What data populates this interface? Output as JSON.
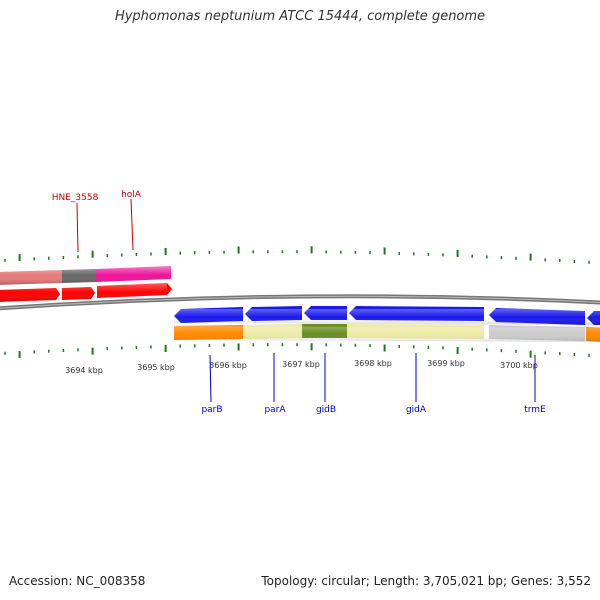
{
  "title": "Hyphomonas neptunium ATCC 15444, complete genome",
  "footer": {
    "accession": "Accession: NC_008358",
    "summary": "Topology: circular; Length: 3,705,021 bp; Genes: 3,552"
  },
  "colors": {
    "backbone": "#777777",
    "tick": "#1a7a1a",
    "top_label": "#cc0000",
    "bottom_label": "#0000cc",
    "gene_red": "#ff0000",
    "gene_pink": "#ee1199",
    "gene_salmon": "#e87878",
    "gene_gray": "#666666",
    "gene_blue": "#1a1aee",
    "gene_orange": "#ff8800",
    "gene_yellow": "#eeeaa8",
    "gene_olive": "#6b8e23",
    "gene_silver": "#cccccc"
  },
  "kbp_labels": [
    "3694 kbp",
    "3695 kbp",
    "3696 kbp",
    "3697 kbp",
    "3698 kbp",
    "3699 kbp",
    "3700 kbp"
  ],
  "top_genes": [
    "HNE_3558",
    "holA"
  ],
  "bottom_genes": [
    "parB",
    "parA",
    "gidB",
    "gidA",
    "trmE"
  ]
}
